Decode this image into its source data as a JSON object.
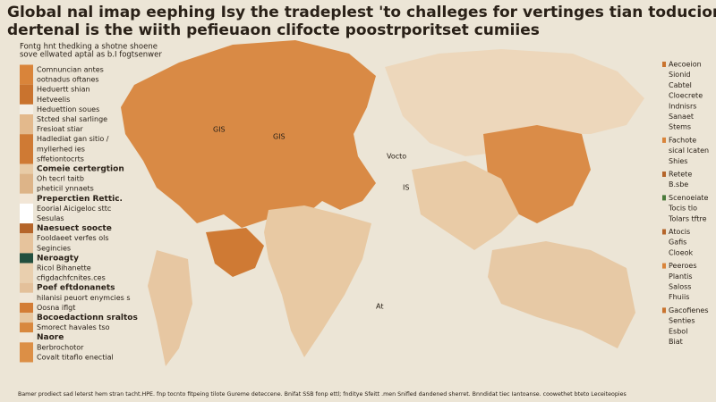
{
  "header": {
    "title": [
      "Global nal imap eephing Isy the tradeplest 'to challeges for vertinges tian toducion",
      "dertenal is the wiith pefieuaon clifocte poostrporitset cumiies"
    ],
    "subtitle": [
      "Fontg  hnt thedking a shotne shoene",
      "sove ellwated aptal as b.I fogtsenwer"
    ]
  },
  "left_legend": [
    {
      "swatch": "#d9843a",
      "bold": false,
      "lines": [
        "Comnuncian antes",
        "ootnadus oftanes"
      ]
    },
    {
      "swatch": "#c9732e",
      "bold": false,
      "lines": [
        "Heduertt shian",
        "Hetveelis"
      ]
    },
    {
      "swatch": "#f4efe6",
      "bold": false,
      "lines": [
        "Heduettion soues"
      ]
    },
    {
      "swatch": "#e3b98c",
      "bold": false,
      "lines": [
        "Stcted shal sarlinge",
        "Fresioat stiar"
      ]
    },
    {
      "swatch": "#cf7a34",
      "bold": false,
      "lines": [
        "Hadlediat gan sitio /",
        "myllerhed ies",
        "sffetiontocrts"
      ]
    },
    {
      "swatch": "#e8cba6",
      "bold": true,
      "lines": [
        "Comeie certergtion"
      ]
    },
    {
      "swatch": "#ddb488",
      "bold": false,
      "lines": [
        "Oh tecrl taitb",
        "pheticil ynnaets"
      ]
    },
    {
      "swatch": "#f2e6d6",
      "bold": true,
      "lines": [
        "Preperctien Rettic."
      ]
    },
    {
      "swatch": "#ffffff",
      "bold": false,
      "lines": [
        "Eoorial Aicigeloc sttc",
        "Sesulas"
      ]
    },
    {
      "swatch": "#b5652a",
      "bold": true,
      "lines": [
        "Naesuect soocte"
      ]
    },
    {
      "swatch": "#e6c39c",
      "bold": false,
      "lines": [
        "Fooldaeet verfes ols",
        "Segincies"
      ]
    },
    {
      "swatch": "#234f3e",
      "bold": true,
      "lines": [
        "Neroagty"
      ]
    },
    {
      "swatch": "#e9cfae",
      "bold": false,
      "lines": [
        "Ricol Bihanette",
        "cfigdachfcnites.ces"
      ]
    },
    {
      "swatch": "#e3c09a",
      "bold": true,
      "lines": [
        "Poef eftdonanets"
      ]
    },
    {
      "swatch": "#f0e6d8",
      "bold": false,
      "lines": [
        "hilanisi peuort  enymcies s"
      ]
    },
    {
      "swatch": "#d37d36",
      "bold": false,
      "lines": [
        "Oosna iflgt"
      ]
    },
    {
      "swatch": "#e7c7a0",
      "bold": true,
      "lines": [
        "Bocoedactionn sraltos"
      ]
    },
    {
      "swatch": "#d8883f",
      "bold": false,
      "lines": [
        "Smorect havales tso"
      ]
    },
    {
      "swatch": "#f1e7d8",
      "bold": true,
      "lines": [
        "Naore"
      ]
    },
    {
      "swatch": "#dc8f46",
      "bold": false,
      "lines": [
        "Berbrochotor",
        "Covalt titaflo enectial"
      ]
    }
  ],
  "right_legend": [
    {
      "swatch": "#c9732e",
      "lines": [
        "Aecoeion",
        "Sionid",
        "Cabtel",
        "Cloecrete",
        "Indnisrs",
        "Sanaet",
        "Stems"
      ]
    },
    {
      "swatch": "#d9843a",
      "lines": [
        "Fachote",
        "sical lcaten",
        "Shies"
      ]
    },
    {
      "swatch": "#b5652a",
      "lines": [
        "Retete",
        "B.sbe"
      ]
    },
    {
      "swatch": "#4a7a3a",
      "lines": [
        "Scenoeiate",
        "Tocis tlo",
        "Tolars tftre"
      ]
    },
    {
      "swatch": "#b5652a",
      "lines": [
        "Atocis",
        "Gafis",
        "Cloeok"
      ]
    },
    {
      "swatch": "#d9843a",
      "lines": [
        "Peeroes",
        "Plantis",
        "Saloss",
        "Fhuiis"
      ]
    },
    {
      "swatch": "#c9732e",
      "lines": [
        "Gacofienes",
        "Senties",
        "Esbol",
        "Biat"
      ]
    }
  ],
  "map_labels": [
    {
      "text": "GIS"
    },
    {
      "text": "GIS"
    },
    {
      "text": "Vocto"
    },
    {
      "text": "IS"
    },
    {
      "text": "At"
    }
  ],
  "footer": "Bamer prodiect sad leterst hem stran tacht.HPE. fnp tocnto fitpeing tilote Gureme deteccene. Bnifat SSB fonp ettl; fnditye Sfeitt .men Snifled dandened sherret. Bnndidat tiec Iantoanse. coowethet bteto Leceiteopies"
}
